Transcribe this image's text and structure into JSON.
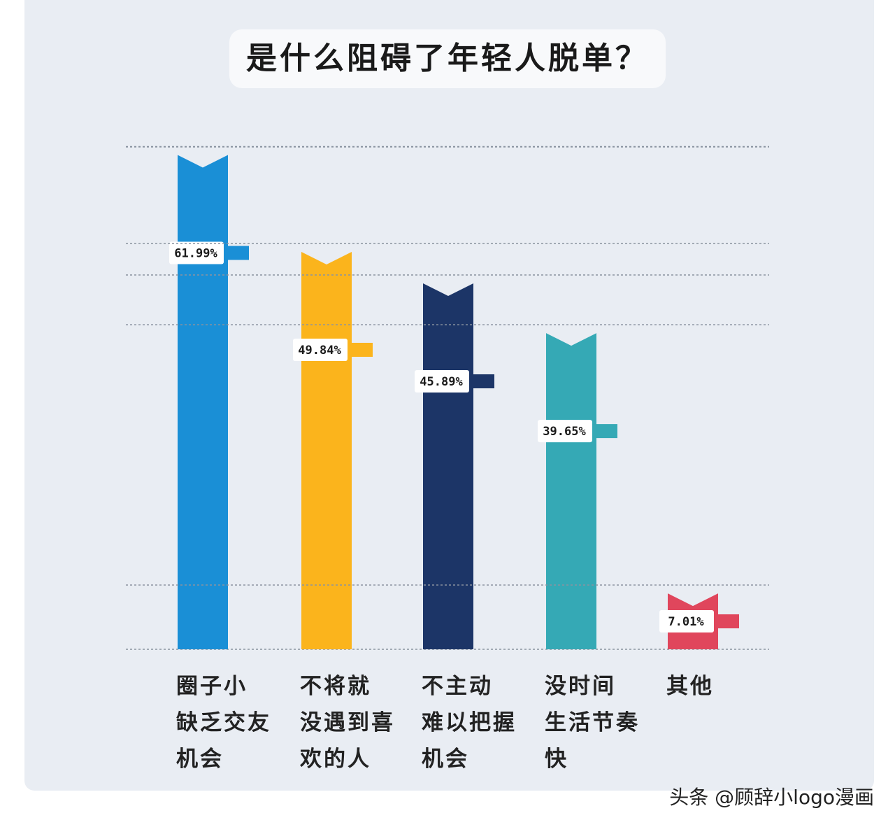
{
  "chart_data": {
    "type": "bar",
    "title": "是什么阻碍了年轻人脱单？",
    "categories": [
      "圈子小\n缺乏交友\n机会",
      "不将就\n没遇到喜\n欢的人",
      "不主动\n难以把握\n机会",
      "没时间\n生活节奏\n快",
      "其他"
    ],
    "values": [
      61.99,
      49.84,
      45.89,
      39.65,
      7.01
    ],
    "value_labels": [
      "61.99%",
      "49.84%",
      "45.89%",
      "39.65%",
      "7.01%"
    ],
    "colors": [
      "#1a8fd6",
      "#fbb41c",
      "#1c3567",
      "#35a9b5",
      "#e0465c"
    ],
    "ylim": [
      0,
      63
    ],
    "grid": true,
    "watermark": "头条 @顾辞小logo漫画"
  }
}
